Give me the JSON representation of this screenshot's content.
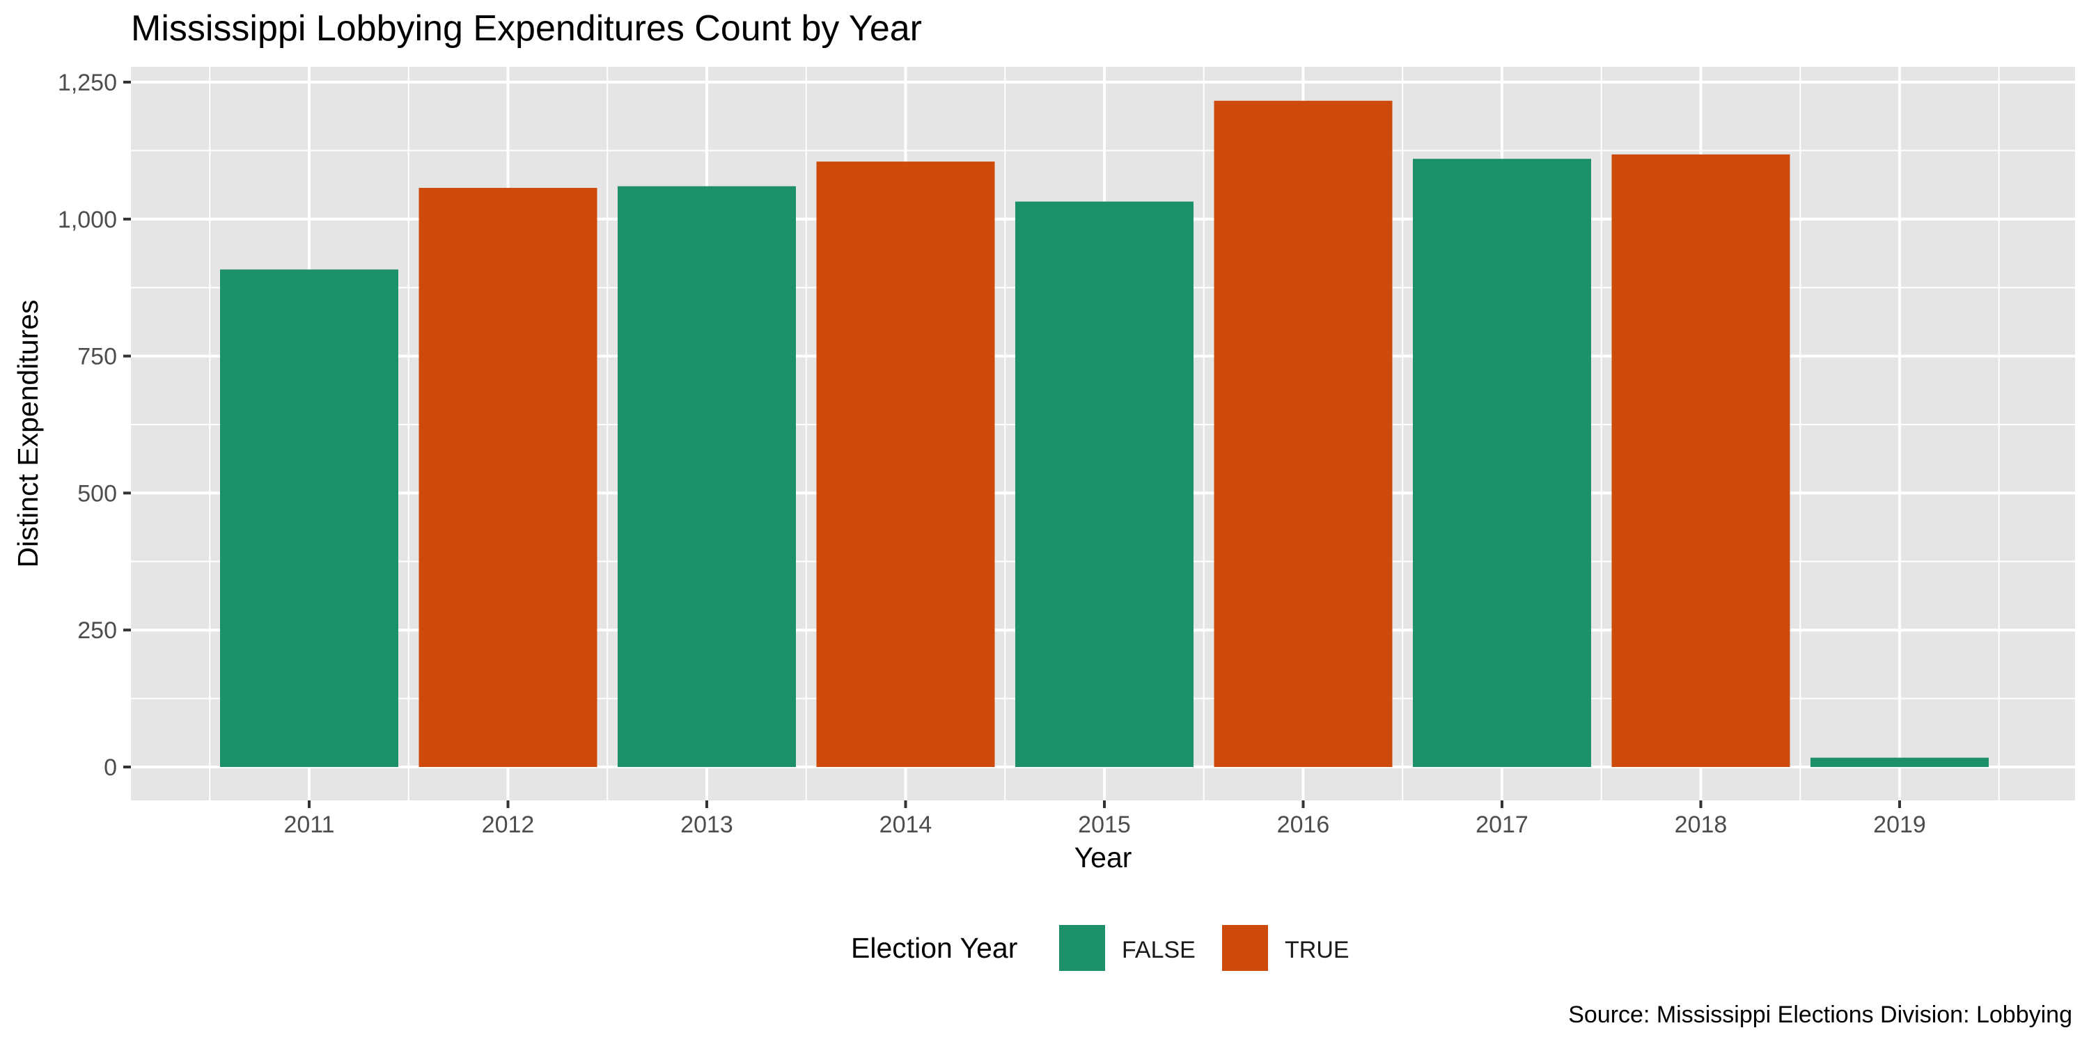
{
  "chart_data": {
    "type": "bar",
    "title": "Mississippi Lobbying Expenditures Count by Year",
    "xlabel": "Year",
    "ylabel": "Distinct Expenditures",
    "caption": "Source: Mississippi Elections Division: Lobbying",
    "categories": [
      "2011",
      "2012",
      "2013",
      "2014",
      "2015",
      "2016",
      "2017",
      "2018",
      "2019"
    ],
    "values": [
      908,
      1057,
      1060,
      1105,
      1032,
      1216,
      1110,
      1118,
      17
    ],
    "fill_group": [
      "FALSE",
      "TRUE",
      "FALSE",
      "TRUE",
      "FALSE",
      "TRUE",
      "FALSE",
      "TRUE",
      "FALSE"
    ],
    "ylim": [
      0,
      1250
    ],
    "y_ticks": [
      0,
      250,
      500,
      750,
      1000,
      1250
    ],
    "y_tick_labels": [
      "0",
      "250",
      "500",
      "750",
      "1,000",
      "1,250"
    ],
    "grid": true,
    "legend": {
      "title": "Election Year",
      "position": "bottom",
      "entries": [
        {
          "label": "FALSE",
          "color": "#1b9069"
        },
        {
          "label": "TRUE",
          "color": "#cd4a0a"
        }
      ]
    },
    "colors": {
      "FALSE": "#1b9069",
      "TRUE": "#cd4a0a",
      "panel_background": "#e5e5e5",
      "grid": "#ffffff"
    }
  }
}
